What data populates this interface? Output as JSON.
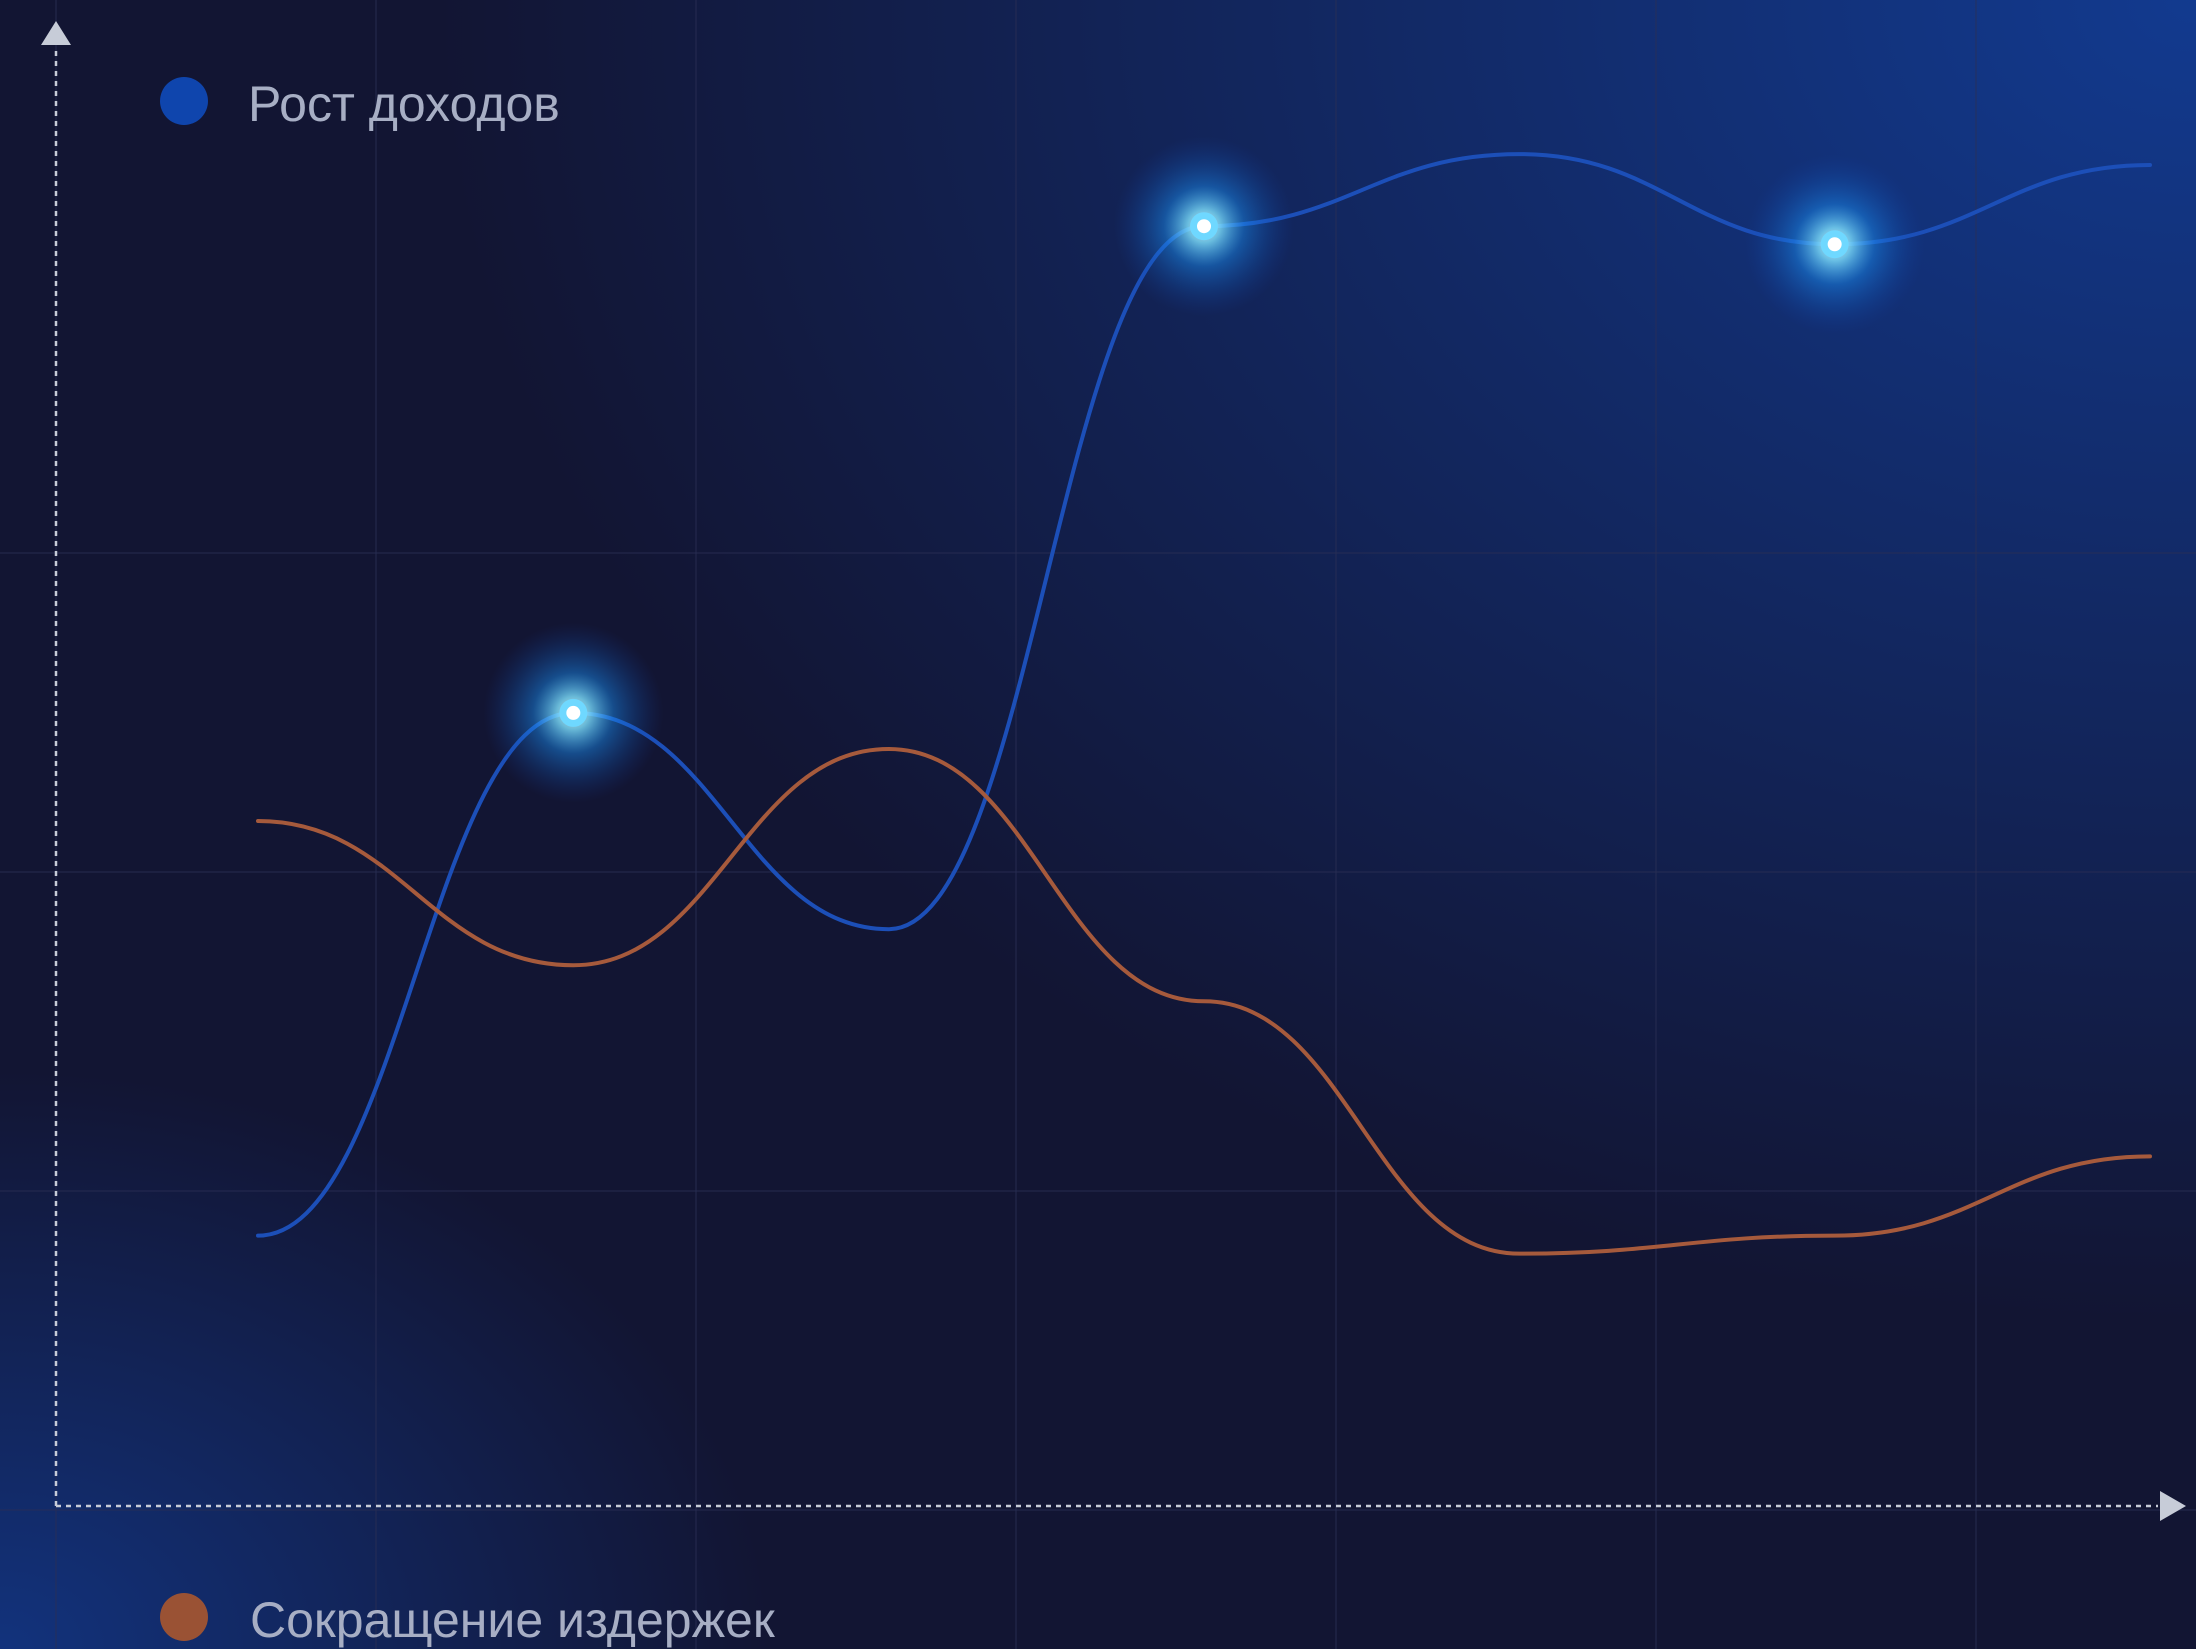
{
  "legend": {
    "revenue_label": "Рост доходов",
    "costs_label": "Сокращение издержек"
  },
  "colors": {
    "background": "#121533",
    "background_glow": "#123a8f",
    "revenue": "#1c4fb8",
    "revenue_marker": "#0f45ad",
    "costs": "#a65a3c",
    "costs_marker": "#9a5234",
    "axis": "#c7ccd8",
    "grid": "#2a2f55",
    "highlight": "#6fd8ff"
  },
  "chart_data": {
    "type": "line",
    "xlim": [
      0,
      6
    ],
    "ylim": [
      0,
      4
    ],
    "grid": true,
    "legend_position": "top-left and bottom-left",
    "x": [
      0,
      1,
      2,
      3,
      4,
      5,
      6
    ],
    "series": [
      {
        "name": "Рост доходов",
        "key": "revenue",
        "values": [
          0.75,
          2.2,
          1.6,
          3.55,
          3.75,
          3.5,
          3.72
        ],
        "highlighted_indices": [
          1,
          3,
          5
        ]
      },
      {
        "name": "Сокращение издержек",
        "key": "costs",
        "values": [
          1.9,
          1.5,
          2.1,
          1.4,
          0.7,
          0.75,
          0.97
        ]
      }
    ]
  }
}
